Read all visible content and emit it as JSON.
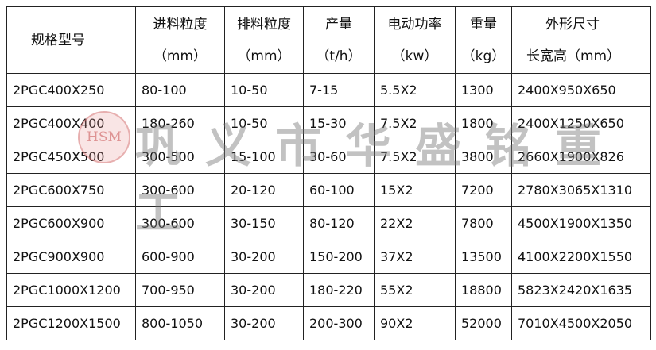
{
  "headers": [
    {
      "line1": "规格型号",
      "line2": ""
    },
    {
      "line1": "进料粒度",
      "line2": "（mm）"
    },
    {
      "line1": "排料粒度",
      "line2": "（mm）"
    },
    {
      "line1": "产量",
      "line2": "（t/h）"
    },
    {
      "line1": "电动功率",
      "line2": "（kw）"
    },
    {
      "line1": "重量",
      "line2": "（kg）"
    },
    {
      "line1": "外形尺寸",
      "line2": "长宽高（mm）"
    }
  ],
  "rows": [
    [
      "2PGC400X250",
      "80-100",
      "10-50",
      "7-15",
      "5.5X2",
      "1300",
      "2400X950X650"
    ],
    [
      "2PGC400X400",
      "180-260",
      "10-50",
      "15-30",
      "7.5X2",
      "1800",
      "2400X1250X650"
    ],
    [
      "2PGC450X500",
      "300-500",
      "15-100",
      "30-60",
      "7.5X2",
      "3800",
      "2660X1900X826"
    ],
    [
      "2PGC600X750",
      "300-600",
      "20-120",
      "60-100",
      "15X2",
      "7200",
      "2780X3065X1310"
    ],
    [
      "2PGC600X900",
      "300-600",
      "30-150",
      "80-120",
      "22X2",
      "7800",
      "4500X1900X1350"
    ],
    [
      "2PGC900X900",
      "600-900",
      "30-200",
      "150-200",
      "37X2",
      "13500",
      "4100X2200X1550"
    ],
    [
      "2PGC1000X1200",
      "700-950",
      "30-200",
      "180-220",
      "55X2",
      "18800",
      "5823X2420X1635"
    ],
    [
      "2PGC1200X1500",
      "800-1050",
      "30-200",
      "200-300",
      "90X2",
      "52000",
      "7010X4500X2050"
    ]
  ],
  "watermark": {
    "text": "巩义市华盛铭重工",
    "logo": "HSM"
  }
}
